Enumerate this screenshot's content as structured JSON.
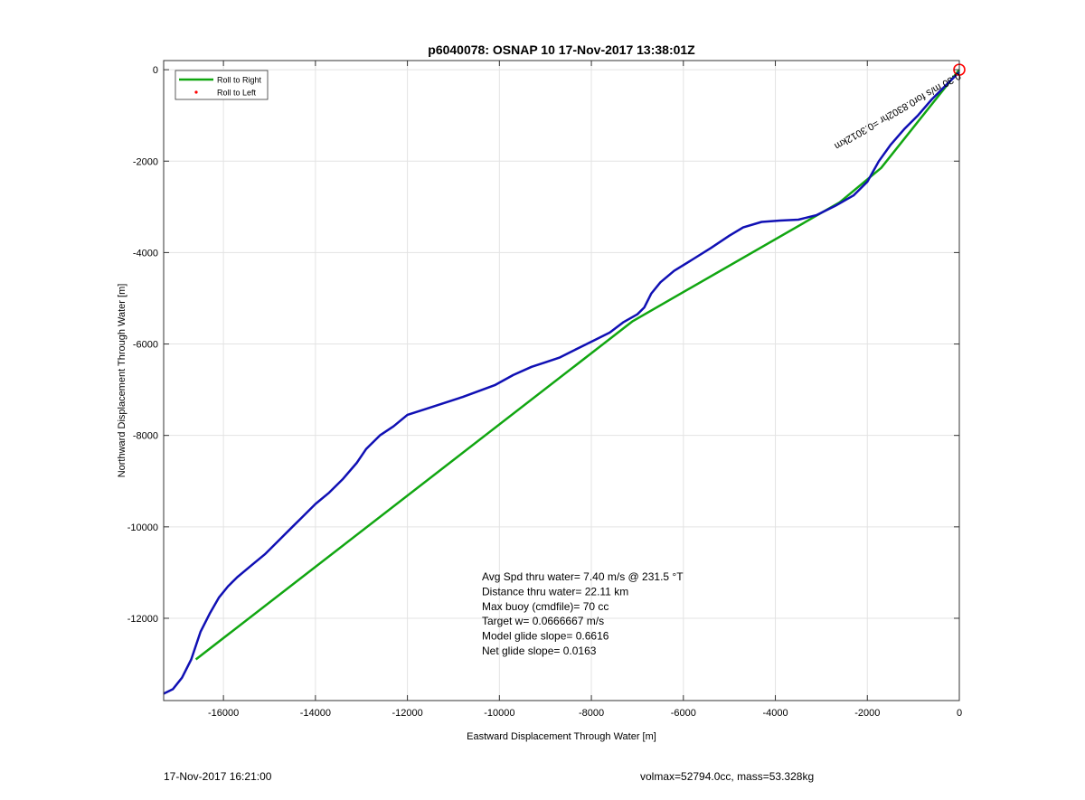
{
  "chart_data": {
    "type": "line",
    "title": "p6040078: OSNAP 10 17-Nov-2017 13:38:01Z",
    "xlabel": "Eastward Displacement Through Water [m]",
    "ylabel": "Northward Displacement Through Water [m]",
    "xlim": [
      -17300,
      0
    ],
    "ylim": [
      -13800,
      200
    ],
    "xticks": [
      -16000,
      -14000,
      -12000,
      -10000,
      -8000,
      -6000,
      -4000,
      -2000,
      0
    ],
    "xtick_labels": [
      "-16000",
      "-14000",
      "-12000",
      "-10000",
      "-8000",
      "-6000",
      "-4000",
      "-2000",
      "0"
    ],
    "yticks": [
      0,
      -2000,
      -4000,
      -6000,
      -8000,
      -10000,
      -12000
    ],
    "ytick_labels": [
      "0",
      "-2000",
      "-4000",
      "-6000",
      "-8000",
      "-10000",
      "-12000"
    ],
    "grid": true,
    "legend_position": "top-left",
    "legend": [
      {
        "label": "Roll to Right",
        "color": "#11a611",
        "style": "line"
      },
      {
        "label": "Roll to Left",
        "color": "#ff0000",
        "style": "dot"
      }
    ],
    "series": [
      {
        "color": "#11a611",
        "x": [
          0,
          -1700,
          -2600,
          -7100,
          -16600
        ],
        "y": [
          0,
          -2150,
          -2900,
          -5500,
          -12900
        ]
      },
      {
        "color": "#1010b4",
        "x": [
          0,
          -100,
          -300,
          -600,
          -900,
          -1200,
          -1500,
          -1750,
          -2000,
          -2300,
          -2700,
          -3100,
          -3500,
          -3900,
          -4300,
          -4700,
          -5000,
          -5400,
          -5800,
          -6200,
          -6500,
          -6700,
          -6850,
          -7000,
          -7300,
          -7600,
          -8000,
          -8400,
          -8700,
          -9000,
          -9300,
          -9700,
          -10100,
          -10500,
          -10800,
          -11200,
          -11600,
          -12000,
          -12300,
          -12600,
          -12900,
          -13100,
          -13400,
          -13700,
          -14000,
          -14300,
          -14500,
          -14800,
          -15100,
          -15400,
          -15700,
          -15900,
          -16100,
          -16300,
          -16500,
          -16700,
          -16900,
          -17100,
          -17300
        ],
        "y": [
          -50,
          -150,
          -350,
          -650,
          -1000,
          -1300,
          -1650,
          -2000,
          -2450,
          -2750,
          -2980,
          -3180,
          -3280,
          -3300,
          -3330,
          -3450,
          -3630,
          -3900,
          -4150,
          -4400,
          -4650,
          -4900,
          -5200,
          -5350,
          -5520,
          -5750,
          -5950,
          -6150,
          -6300,
          -6400,
          -6500,
          -6680,
          -6900,
          -7050,
          -7160,
          -7290,
          -7420,
          -7550,
          -7800,
          -8000,
          -8300,
          -8600,
          -8950,
          -9250,
          -9500,
          -9800,
          -10000,
          -10300,
          -10600,
          -10850,
          -11100,
          -11300,
          -11550,
          -11900,
          -12300,
          -12900,
          -13300,
          -13550,
          -13650
        ]
      }
    ],
    "marker": {
      "x": 0,
      "y": 0,
      "color": "#ff0000"
    },
    "rotated_annotation": "0.30 m/s for0.8302hr =0.3012km",
    "stats_text": [
      "Avg Spd thru water=  7.40 m/s @ 231.5 °T",
      "Distance thru water= 22.11 km",
      "Max buoy (cmdfile)= 70 cc",
      "Target w= 0.0666667 m/s",
      "Model glide slope= 0.6616",
      "Net glide slope= 0.0163"
    ]
  },
  "footer": {
    "left": "17-Nov-2017 16:21:00",
    "right": "volmax=52794.0cc, mass=53.328kg"
  }
}
